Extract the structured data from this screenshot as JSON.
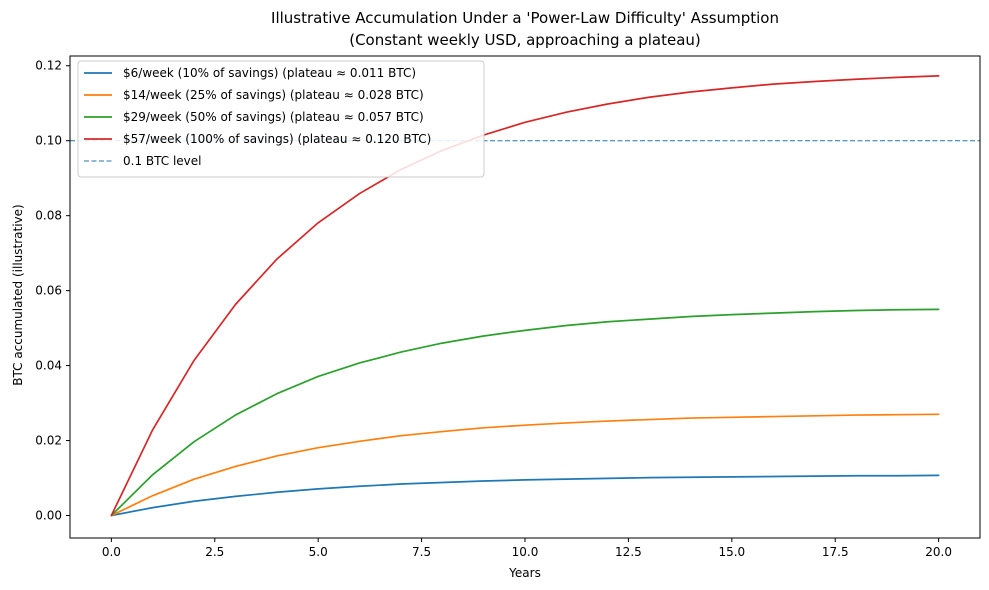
{
  "chart_data": {
    "type": "line",
    "title": "Illustrative Accumulation Under a 'Power-Law Difficulty' Assumption",
    "subtitle": "(Constant weekly USD, approaching a plateau)",
    "xlabel": "Years",
    "ylabel": "BTC accumulated (illustrative)",
    "xlim": [
      -1.0,
      21.0
    ],
    "ylim": [
      -0.006,
      0.1226
    ],
    "xticks": [
      "0.0",
      "2.5",
      "5.0",
      "7.5",
      "10.0",
      "12.5",
      "15.0",
      "17.5",
      "20.0"
    ],
    "yticks": [
      "0.00",
      "0.02",
      "0.04",
      "0.06",
      "0.08",
      "0.10",
      "0.12"
    ],
    "grid": false,
    "legend_position": "top-left",
    "x": [
      0,
      1,
      2,
      3,
      4,
      5,
      6,
      7,
      8,
      9,
      10,
      11,
      12,
      13,
      14,
      15,
      16,
      17,
      18,
      19,
      20
    ],
    "series": [
      {
        "name": "$6/week (10% of savings) (plateau ≈ 0.011 BTC)",
        "color": "#1f77b4",
        "values": [
          0.0,
          0.0021,
          0.0038,
          0.0051,
          0.0062,
          0.0071,
          0.0078,
          0.0084,
          0.0088,
          0.0092,
          0.0095,
          0.0097,
          0.0099,
          0.0101,
          0.0102,
          0.0103,
          0.0104,
          0.0105,
          0.0106,
          0.0106,
          0.0107
        ]
      },
      {
        "name": "$14/week (25% of savings) (plateau ≈ 0.028 BTC)",
        "color": "#ff7f0e",
        "values": [
          0.0,
          0.0053,
          0.0097,
          0.0131,
          0.0159,
          0.0181,
          0.0198,
          0.0213,
          0.0224,
          0.0234,
          0.0241,
          0.0247,
          0.0252,
          0.0256,
          0.026,
          0.0262,
          0.0264,
          0.0266,
          0.0268,
          0.0269,
          0.027
        ]
      },
      {
        "name": "$29/week (50% of savings) (plateau ≈ 0.057 BTC)",
        "color": "#2ca02c",
        "values": [
          0.0,
          0.0109,
          0.0197,
          0.0268,
          0.0325,
          0.0371,
          0.0407,
          0.0436,
          0.046,
          0.0479,
          0.0494,
          0.0507,
          0.0517,
          0.0524,
          0.0531,
          0.0536,
          0.054,
          0.0544,
          0.0547,
          0.0549,
          0.055
        ]
      },
      {
        "name": "$57/week (100% of savings) (plateau ≈ 0.120 BTC)",
        "color": "#d62728",
        "values": [
          0.0,
          0.0229,
          0.0414,
          0.0563,
          0.0684,
          0.0781,
          0.0859,
          0.0923,
          0.0974,
          0.1015,
          0.1049,
          0.1076,
          0.1098,
          0.1116,
          0.113,
          0.1141,
          0.1151,
          0.1158,
          0.1164,
          0.1169,
          0.1173
        ]
      }
    ],
    "reference_lines": [
      {
        "name": "0.1 BTC level",
        "y": 0.1,
        "color": "#1f77b4",
        "style": "dashed"
      }
    ]
  }
}
